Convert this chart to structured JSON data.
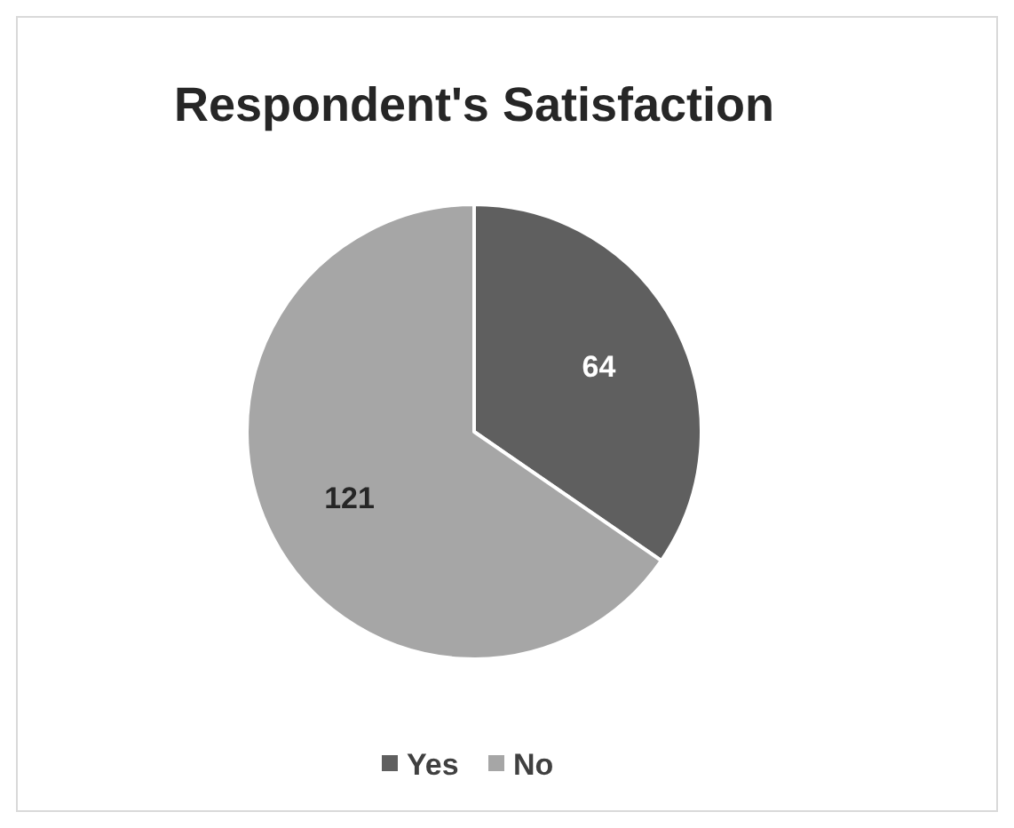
{
  "chart_data": {
    "type": "pie",
    "title": "Respondent's Satisfaction",
    "categories": [
      "Yes",
      "No"
    ],
    "values": [
      64,
      121
    ],
    "colors": [
      "#5f5f5f",
      "#a6a6a6"
    ],
    "data_labels": true,
    "legend": "bottom"
  }
}
